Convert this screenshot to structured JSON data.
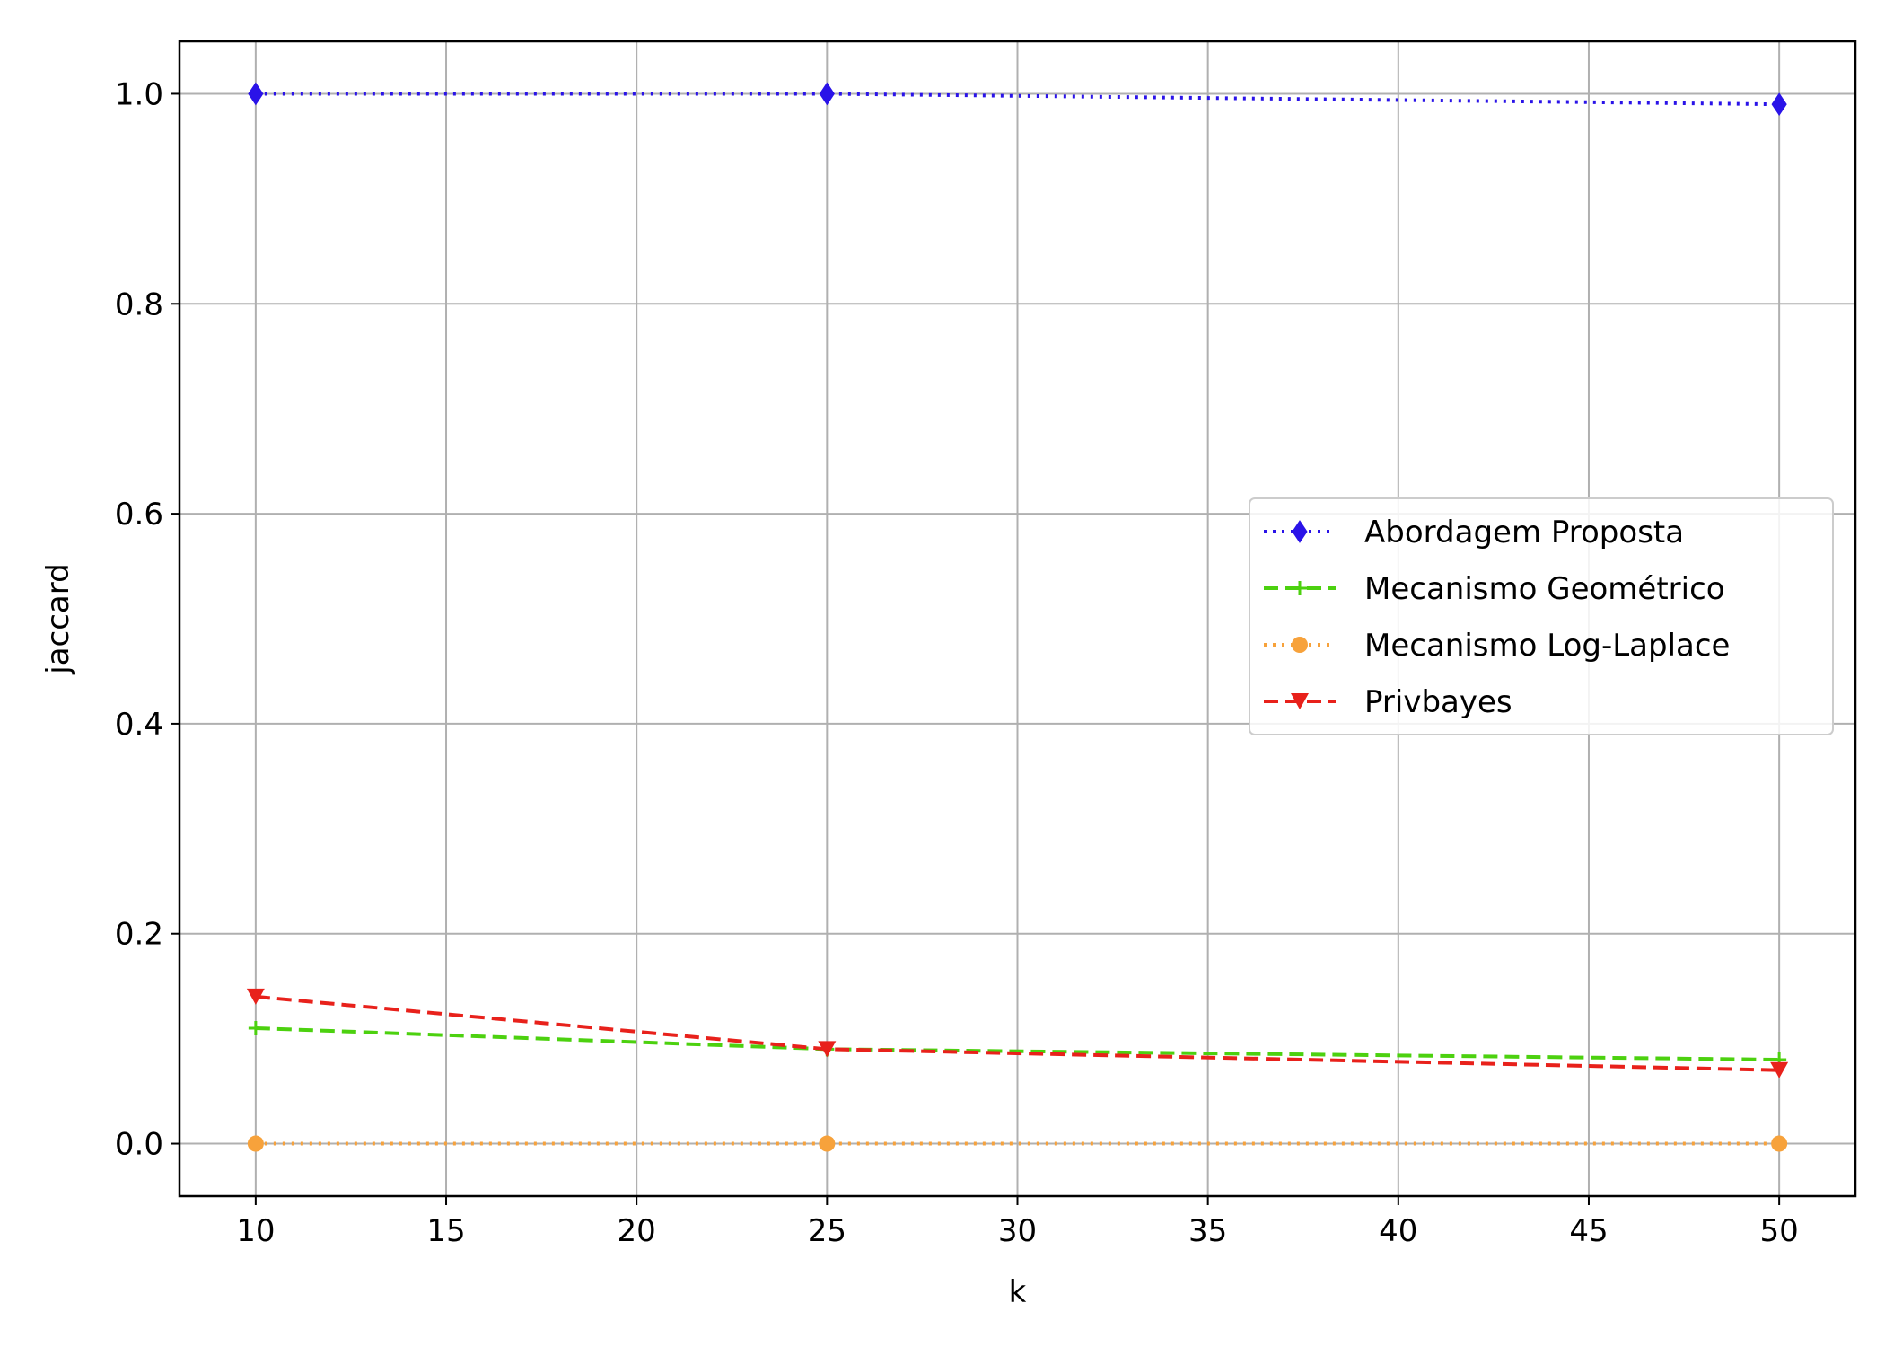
{
  "chart_data": {
    "type": "line",
    "title": "",
    "xlabel": "k",
    "ylabel": "jaccard",
    "xlim": [
      8,
      52
    ],
    "ylim": [
      -0.05,
      1.05
    ],
    "xticks": [
      10,
      15,
      20,
      25,
      30,
      35,
      40,
      45,
      50
    ],
    "xtick_labels": [
      "10",
      "15",
      "20",
      "25",
      "30",
      "35",
      "40",
      "45",
      "50"
    ],
    "yticks": [
      0.0,
      0.2,
      0.4,
      0.6,
      0.8,
      1.0
    ],
    "ytick_labels": [
      "0.0",
      "0.2",
      "0.4",
      "0.6",
      "0.8",
      "1.0"
    ],
    "grid": true,
    "legend_position": "center-right",
    "x": [
      10,
      25,
      50
    ],
    "series": [
      {
        "name": "Abordagem Proposta",
        "values": [
          1.0,
          1.0,
          0.99
        ],
        "color": "#2a13e8",
        "linestyle": "dotted",
        "marker": "diamond"
      },
      {
        "name": "Mecanismo Geométrico",
        "values": [
          0.11,
          0.09,
          0.08
        ],
        "color": "#4cd10f",
        "linestyle": "dashed",
        "marker": "plus"
      },
      {
        "name": "Mecanismo Log-Laplace",
        "values": [
          0.0,
          0.0,
          0.0
        ],
        "color": "#f7a23b",
        "linestyle": "dotted",
        "marker": "circle"
      },
      {
        "name": "Privbayes",
        "values": [
          0.14,
          0.09,
          0.07
        ],
        "color": "#e8211b",
        "linestyle": "dashed",
        "marker": "triangle-down"
      }
    ]
  }
}
